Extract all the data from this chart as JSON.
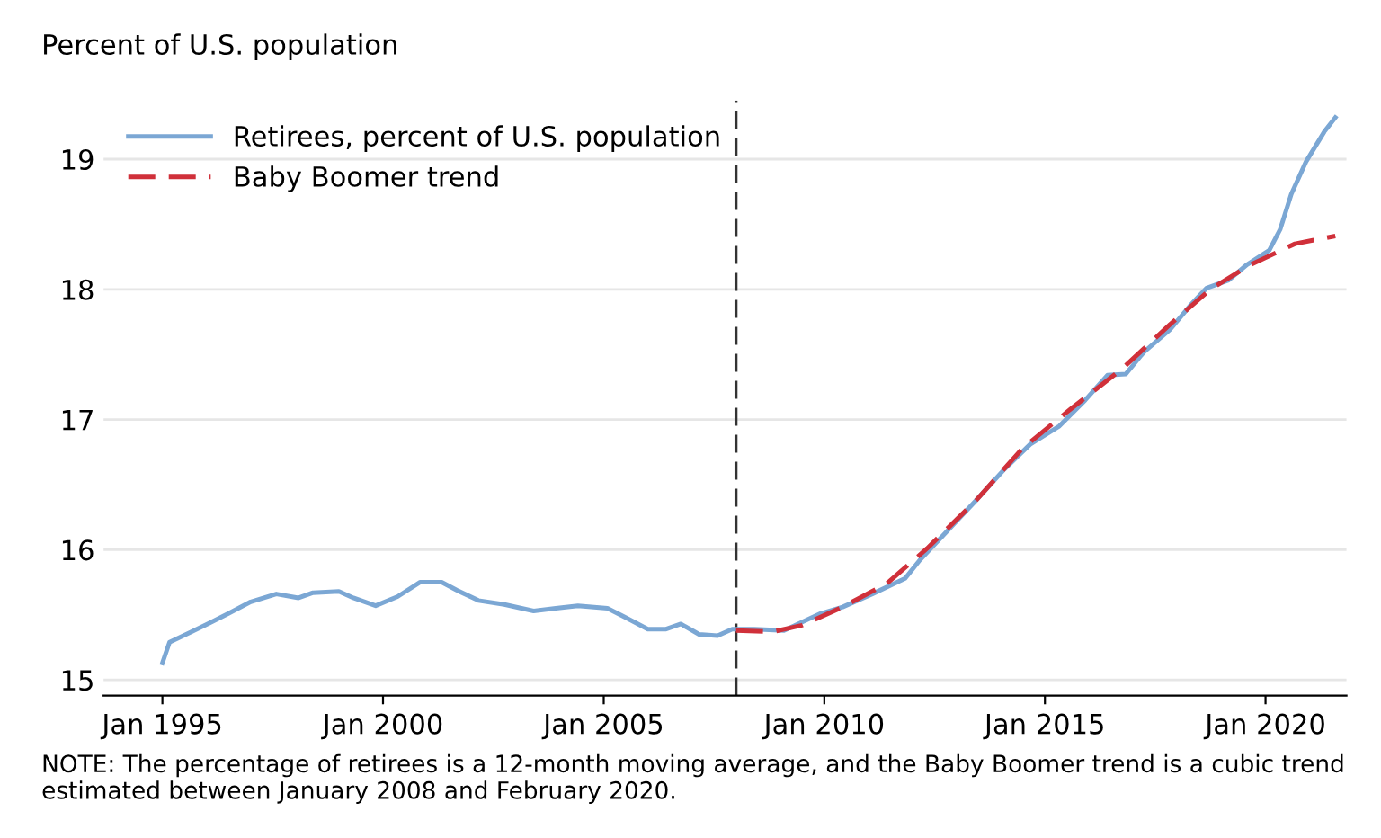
{
  "chart_data": {
    "type": "line",
    "ylabel": "Percent of U.S. population",
    "xlim": [
      "1993-09",
      "2021-11"
    ],
    "ylim": [
      14.88,
      19.45
    ],
    "xticks": [
      {
        "value": "1995-01",
        "label": "Jan 1995"
      },
      {
        "value": "2000-01",
        "label": "Jan 2000"
      },
      {
        "value": "2005-01",
        "label": "Jan 2005"
      },
      {
        "value": "2010-01",
        "label": "Jan 2010"
      },
      {
        "value": "2015-01",
        "label": "Jan 2015"
      },
      {
        "value": "2020-01",
        "label": "Jan 2020"
      }
    ],
    "yticks": [
      15,
      16,
      17,
      18,
      19
    ],
    "grid": "y",
    "legend": "top left",
    "marker": "none",
    "series": [
      {
        "name": "Retirees, percent of U.S. population",
        "color": "#7ba7d4",
        "line_style": "solid",
        "x": [
          "1995-01",
          "1995-03",
          "1995-09",
          "1996-02",
          "1996-07",
          "1997-01",
          "1997-08",
          "1998-02",
          "1998-06",
          "1999-01",
          "1999-05",
          "1999-11",
          "2000-05",
          "2000-11",
          "2001-05",
          "2001-09",
          "2002-03",
          "2002-10",
          "2003-06",
          "2003-12",
          "2004-06",
          "2005-02",
          "2005-07",
          "2006-01",
          "2006-06",
          "2006-10",
          "2007-03",
          "2007-08",
          "2007-12",
          "2008-06",
          "2009-02",
          "2009-12",
          "2010-06",
          "2011-02",
          "2011-11",
          "2012-03",
          "2012-10",
          "2013-06",
          "2014-02",
          "2014-09",
          "2015-05",
          "2015-12",
          "2016-06",
          "2016-11",
          "2017-04",
          "2017-11",
          "2018-05",
          "2018-09",
          "2019-03",
          "2019-08",
          "2020-02",
          "2020-05",
          "2020-08",
          "2020-12",
          "2021-05",
          "2021-08"
        ],
        "values": [
          15.13,
          15.29,
          15.37,
          15.44,
          15.51,
          15.6,
          15.66,
          15.63,
          15.67,
          15.68,
          15.63,
          15.57,
          15.64,
          15.75,
          15.75,
          15.69,
          15.61,
          15.58,
          15.53,
          15.55,
          15.57,
          15.55,
          15.48,
          15.39,
          15.39,
          15.43,
          15.35,
          15.34,
          15.39,
          15.39,
          15.38,
          15.51,
          15.56,
          15.66,
          15.78,
          15.92,
          16.13,
          16.37,
          16.62,
          16.81,
          16.95,
          17.15,
          17.34,
          17.35,
          17.52,
          17.69,
          17.89,
          18.01,
          18.07,
          18.19,
          18.3,
          18.46,
          18.73,
          18.98,
          19.21,
          19.32
        ]
      },
      {
        "name": "Baby Boomer trend",
        "color": "#d0303a",
        "line_style": "dashed",
        "x": [
          "2008-01",
          "2008-11",
          "2009-07",
          "2010-06",
          "2011-06",
          "2012-05",
          "2013-06",
          "2014-07",
          "2015-08",
          "2016-10",
          "2017-11",
          "2018-10",
          "2019-09",
          "2020-09",
          "2021-08"
        ],
        "values": [
          15.38,
          15.37,
          15.42,
          15.56,
          15.74,
          16.01,
          16.37,
          16.78,
          17.08,
          17.39,
          17.73,
          18.0,
          18.19,
          18.35,
          18.41
        ]
      }
    ],
    "ref_lines": [
      {
        "axis": "x",
        "value": "2008-01",
        "color": "#333333",
        "line_style": "dashed"
      }
    ],
    "annotations": [
      "NOTE: The percentage of retirees is a 12-month moving average, and the Baby Boomer trend is a cubic trend estimated between January 2008 and February 2020."
    ]
  }
}
